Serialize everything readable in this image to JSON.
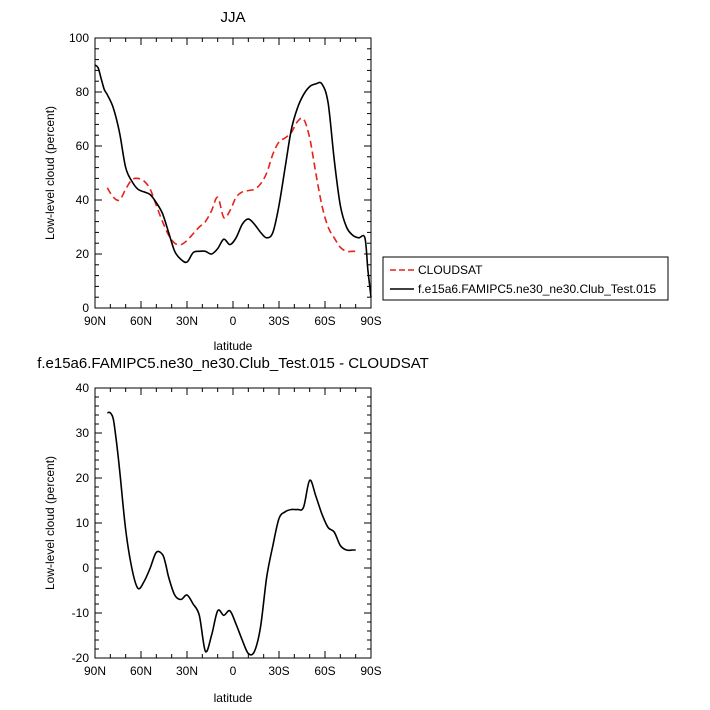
{
  "chart_data": [
    {
      "type": "line",
      "title": "JJA",
      "xlabel": "latitude",
      "ylabel": "Low-level cloud (percent)",
      "xticks": [
        "90N",
        "60N",
        "30N",
        "0",
        "30S",
        "60S",
        "90S"
      ],
      "ylim": [
        0,
        100
      ],
      "yticks": [
        0,
        20,
        40,
        60,
        80,
        100
      ],
      "xlim": [
        90,
        -90
      ],
      "legend_position": "right",
      "series": [
        {
          "name": "CLOUDSAT",
          "color": "#e8211b",
          "dash": "dashed",
          "x": [
            82,
            78,
            74,
            70,
            66,
            62,
            58,
            54,
            50,
            46,
            42,
            38,
            34,
            30,
            26,
            22,
            18,
            14,
            10,
            6,
            2,
            -2,
            -6,
            -10,
            -14,
            -18,
            -22,
            -26,
            -30,
            -34,
            -38,
            -42,
            -46,
            -50,
            -54,
            -58,
            -62,
            -66,
            -70,
            -74,
            -78,
            -82
          ],
          "y": [
            44.5,
            41,
            40,
            44,
            47.5,
            48,
            47,
            44,
            38,
            32,
            27,
            24,
            23.5,
            25,
            27.5,
            30,
            32,
            36,
            41,
            33.5,
            36,
            41,
            43,
            43.5,
            44,
            46,
            50,
            57,
            61.5,
            63,
            65,
            69,
            70,
            63,
            50,
            38,
            30,
            26,
            22.5,
            21,
            21,
            21
          ]
        },
        {
          "name": "f.e15a6.FAMIPC5.ne30_ne30.Club_Test.015",
          "color": "#000000",
          "dash": "solid",
          "x": [
            90,
            88,
            86,
            84,
            82,
            78,
            74,
            70,
            66,
            62,
            58,
            54,
            50,
            46,
            42,
            38,
            34,
            30,
            26,
            22,
            18,
            14,
            10,
            6,
            2,
            -2,
            -6,
            -10,
            -14,
            -18,
            -22,
            -26,
            -30,
            -34,
            -38,
            -42,
            -46,
            -50,
            -54,
            -58,
            -62,
            -66,
            -70,
            -74,
            -78,
            -82,
            -86,
            -88,
            -90
          ],
          "y": [
            90,
            89,
            85,
            81,
            79,
            74,
            65,
            52,
            47,
            44,
            43,
            42,
            39,
            35,
            28,
            21,
            18,
            17,
            20.5,
            21,
            21,
            20,
            22,
            25.5,
            23.5,
            26,
            31,
            33,
            31,
            28,
            26,
            28,
            38,
            52,
            66,
            74,
            79,
            82,
            83,
            83,
            76,
            55,
            38,
            30,
            27,
            26,
            26,
            14,
            4
          ]
        }
      ]
    },
    {
      "type": "line",
      "title": "f.e15a6.FAMIPC5.ne30_ne30.Club_Test.015 - CLOUDSAT",
      "xlabel": "latitude",
      "ylabel": "Low-level cloud (percent)",
      "xticks": [
        "90N",
        "60N",
        "30N",
        "0",
        "30S",
        "60S",
        "90S"
      ],
      "ylim": [
        -20,
        40
      ],
      "yticks": [
        -20,
        -10,
        0,
        10,
        20,
        30,
        40
      ],
      "xlim": [
        90,
        -90
      ],
      "series": [
        {
          "color": "#000000",
          "dash": "solid",
          "x": [
            82,
            80,
            78,
            76,
            74,
            70,
            66,
            62,
            58,
            54,
            50,
            46,
            44,
            42,
            38,
            34,
            30,
            26,
            22,
            18,
            14,
            10,
            6,
            2,
            -2,
            -6,
            -10,
            -14,
            -18,
            -22,
            -26,
            -30,
            -34,
            -38,
            -42,
            -46,
            -50,
            -54,
            -58,
            -62,
            -66,
            -70,
            -74,
            -78,
            -80
          ],
          "y": [
            34.5,
            34.5,
            33,
            28,
            22,
            8.5,
            0,
            -4.5,
            -3,
            0,
            3.5,
            3,
            1,
            -2,
            -6,
            -7,
            -6,
            -8,
            -10.5,
            -18.5,
            -15,
            -9.5,
            -10.5,
            -9.5,
            -12.5,
            -16,
            -19,
            -18.5,
            -13,
            -2,
            5,
            11,
            12.5,
            13,
            13,
            13.5,
            19.5,
            16,
            12,
            9,
            8,
            5,
            4,
            4,
            4
          ]
        }
      ]
    }
  ]
}
